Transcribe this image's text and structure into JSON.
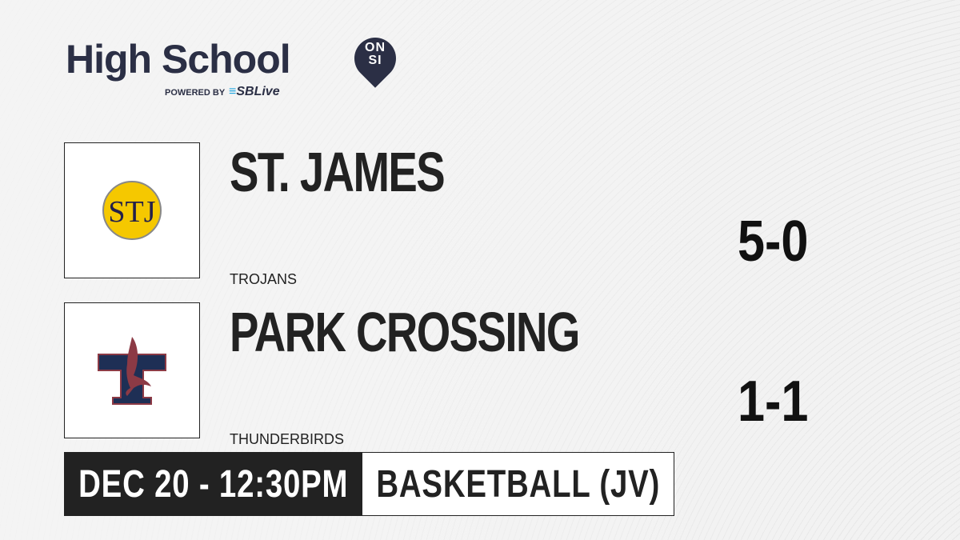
{
  "brand": {
    "title": "High School",
    "badge_top": "ON",
    "badge_bottom": "SI",
    "powered_by": "POWERED BY",
    "sponsor": "SBLive"
  },
  "teams": [
    {
      "name": "ST. JAMES",
      "mascot": "TROJANS",
      "record": "5-0",
      "logo_text": "STJ"
    },
    {
      "name": "PARK CROSSING",
      "mascot": "THUNDERBIRDS",
      "record": "1-1"
    }
  ],
  "game": {
    "datetime": "DEC 20 - 12:30PM",
    "sport": "BASKETBALL (JV)"
  },
  "colors": {
    "brand": "#2b2f45",
    "sponsor_accent": "#1fa6e0",
    "stj_yellow": "#f5c800",
    "park_navy": "#1e2f55",
    "park_red": "#8c3a45"
  }
}
